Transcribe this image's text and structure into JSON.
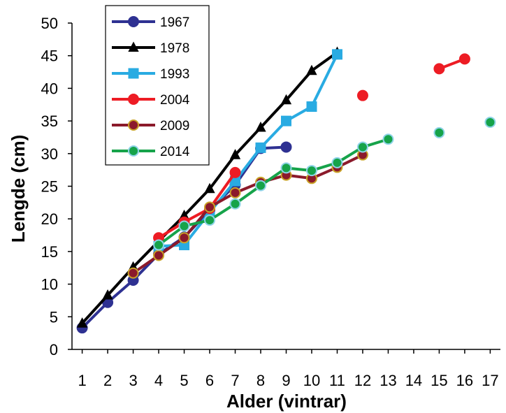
{
  "chart_data": {
    "type": "line",
    "title": "",
    "xlabel": "Alder (vintrar)",
    "ylabel": "Lengde (cm)",
    "xlim": [
      0.6,
      17.4
    ],
    "ylim": [
      0,
      50
    ],
    "x_ticks": [
      1,
      2,
      3,
      4,
      5,
      6,
      7,
      8,
      9,
      10,
      11,
      12,
      13,
      14,
      15,
      16,
      17
    ],
    "y_ticks": [
      0,
      5,
      10,
      15,
      20,
      25,
      30,
      35,
      40,
      45,
      50
    ],
    "grid": false,
    "legend_position": "top-left",
    "series": [
      {
        "name": "1967",
        "color": "#2e3192",
        "marker": "circle",
        "markerEdge": "#2e3192",
        "points": [
          [
            1,
            3.3
          ],
          [
            2,
            7.2
          ],
          [
            3,
            10.6
          ],
          [
            4,
            14.6
          ],
          [
            5,
            17.2
          ],
          [
            6,
            21.3
          ],
          [
            7,
            25.2
          ],
          [
            8,
            30.8
          ],
          [
            9,
            31.0
          ]
        ]
      },
      {
        "name": "1978",
        "color": "#000000",
        "marker": "triangle",
        "markerEdge": "#000000",
        "points": [
          [
            1,
            4.0
          ],
          [
            2,
            8.3
          ],
          [
            3,
            12.6
          ],
          [
            4,
            16.6
          ],
          [
            5,
            20.5
          ],
          [
            6,
            24.6
          ],
          [
            7,
            29.8
          ],
          [
            8,
            34.0
          ],
          [
            9,
            38.2
          ],
          [
            10,
            42.7
          ],
          [
            11,
            45.5
          ]
        ]
      },
      {
        "name": "1993",
        "color": "#29abe2",
        "marker": "square",
        "markerEdge": "#29abe2",
        "points": [
          [
            4,
            15.8
          ],
          [
            5,
            16.0
          ],
          [
            6,
            21.0
          ],
          [
            7,
            25.8
          ],
          [
            8,
            30.9
          ],
          [
            9,
            35.0
          ],
          [
            10,
            37.2
          ],
          [
            11,
            45.2
          ]
        ]
      },
      {
        "name": "2004",
        "color": "#ed1c24",
        "marker": "circle",
        "markerEdge": "#ed1c24",
        "points": [
          [
            4,
            17.1
          ],
          [
            5,
            19.5
          ],
          [
            6,
            21.6
          ],
          [
            7,
            27.1
          ],
          null,
          null,
          null,
          [
            12,
            38.9
          ],
          null,
          null,
          [
            15,
            43.0
          ],
          [
            16,
            44.5
          ]
        ]
      },
      {
        "name": "2009",
        "color": "#8b1a2b",
        "marker": "circle",
        "markerEdge": "#c9a227",
        "points": [
          [
            3,
            11.7
          ],
          [
            4,
            14.4
          ],
          [
            5,
            17.1
          ],
          [
            6,
            21.8
          ],
          [
            7,
            24.0
          ],
          [
            8,
            25.6
          ],
          [
            9,
            26.7
          ],
          [
            10,
            26.2
          ],
          [
            11,
            27.9
          ],
          [
            12,
            29.8
          ]
        ]
      },
      {
        "name": "2014",
        "color": "#16a34a",
        "marker": "circle",
        "markerEdge": "#8fd3e8",
        "points": [
          [
            4,
            16.0
          ],
          [
            5,
            18.9
          ],
          [
            6,
            19.8
          ],
          [
            7,
            22.3
          ],
          [
            8,
            25.1
          ],
          [
            9,
            27.8
          ],
          [
            10,
            27.4
          ],
          [
            11,
            28.6
          ],
          [
            12,
            31.0
          ],
          [
            13,
            32.2
          ],
          null,
          [
            15,
            33.2
          ],
          null,
          [
            17,
            34.8
          ]
        ]
      }
    ]
  }
}
